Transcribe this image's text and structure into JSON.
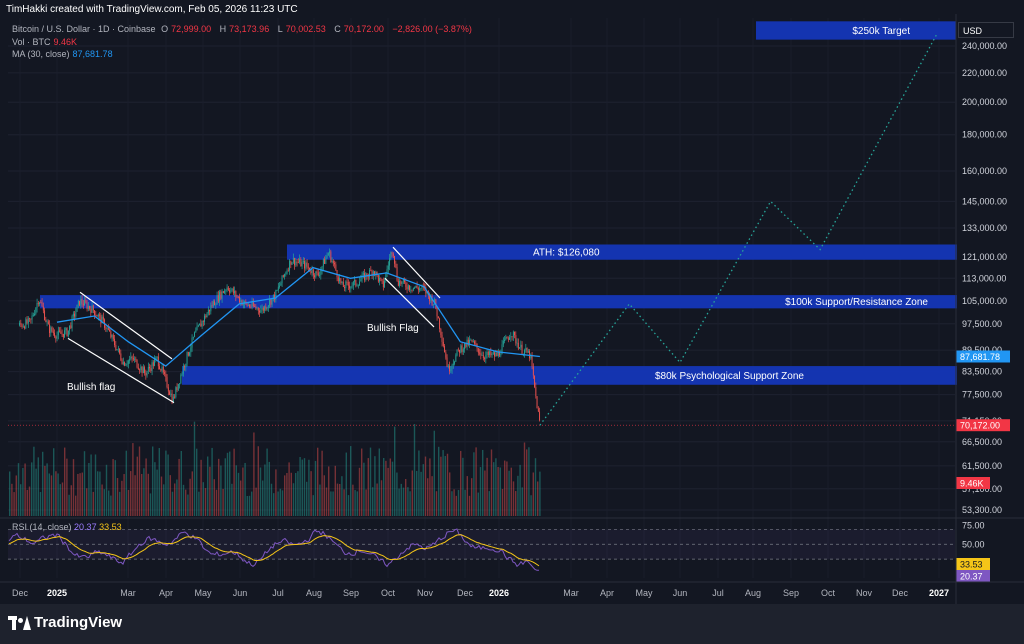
{
  "header": {
    "credit": "TimHakki created with TradingView.com, Feb 05, 2026 11:23 UTC",
    "symbol": "Bitcoin / U.S. Dollar · 1D · Coinbase",
    "open_label": "O",
    "open": "72,999.00",
    "high_label": "H",
    "high": "73,173.96",
    "low_label": "L",
    "low": "70,002.53",
    "close_label": "C",
    "close": "70,172.00",
    "change": "−2,826.00 (−3.87%)",
    "vol_label": "Vol · BTC",
    "vol": "9.46K",
    "ma_label": "MA (30, close)",
    "ma": "87,681.78",
    "rsi_label": "RSI (14, close)",
    "rsi": "20.37",
    "rsi_ma": "33.53"
  },
  "currency": "USD",
  "brand": "TradingView",
  "colors": {
    "background": "#131722",
    "zone": "#1436b8",
    "up": "#26a69a",
    "down": "#ef5350",
    "ma": "#2196f3",
    "projection": "#26a69a",
    "rsi": "#7e57c2",
    "rsi_ma": "#f5c518",
    "price_label": "#f23645"
  },
  "chart_data": {
    "type": "candlestick",
    "x_ticks": [
      "Dec",
      "2025",
      "Mar",
      "Apr",
      "May",
      "Jun",
      "Jul",
      "Aug",
      "Sep",
      "Oct",
      "Nov",
      "Dec",
      "2026",
      "Mar",
      "Apr",
      "May",
      "Jun",
      "Jul",
      "Aug",
      "Sep",
      "Oct",
      "Nov",
      "Dec",
      "2027"
    ],
    "y_ticks": [
      "240,000.00",
      "220,000.00",
      "200,000.00",
      "180,000.00",
      "160,000.00",
      "145,000.00",
      "133,000.00",
      "121,000.00",
      "113,000.00",
      "105,000.00",
      "97,500.00",
      "89,500.00",
      "83,500.00",
      "77,500.00",
      "71,150.00",
      "66,500.00",
      "61,500.00",
      "57,100.00",
      "53,300.00"
    ],
    "scale": "log",
    "price_series": [
      [
        "2024-12-01",
        97000
      ],
      [
        "2024-12-10",
        98000
      ],
      [
        "2024-12-17",
        106000
      ],
      [
        "2024-12-25",
        96000
      ],
      [
        "2025-01-01",
        94000
      ],
      [
        "2025-01-10",
        95000
      ],
      [
        "2025-01-20",
        105000
      ],
      [
        "2025-01-31",
        102000
      ],
      [
        "2025-02-10",
        97000
      ],
      [
        "2025-02-25",
        86000
      ],
      [
        "2025-03-05",
        87000
      ],
      [
        "2025-03-15",
        83000
      ],
      [
        "2025-03-25",
        87000
      ],
      [
        "2025-04-07",
        76000
      ],
      [
        "2025-04-15",
        84000
      ],
      [
        "2025-04-25",
        94000
      ],
      [
        "2025-05-10",
        104000
      ],
      [
        "2025-05-22",
        110000
      ],
      [
        "2025-06-05",
        104000
      ],
      [
        "2025-06-20",
        102000
      ],
      [
        "2025-07-01",
        107000
      ],
      [
        "2025-07-14",
        120000
      ],
      [
        "2025-07-25",
        118000
      ],
      [
        "2025-08-05",
        114000
      ],
      [
        "2025-08-14",
        123000
      ],
      [
        "2025-08-25",
        110000
      ],
      [
        "2025-09-05",
        111000
      ],
      [
        "2025-09-20",
        116000
      ],
      [
        "2025-09-28",
        110000
      ],
      [
        "2025-10-06",
        125000
      ],
      [
        "2025-10-10",
        112000
      ],
      [
        "2025-10-20",
        110000
      ],
      [
        "2025-11-01",
        109000
      ],
      [
        "2025-11-10",
        104000
      ],
      [
        "2025-11-21",
        84000
      ],
      [
        "2025-12-01",
        90000
      ],
      [
        "2025-12-10",
        92000
      ],
      [
        "2025-12-20",
        88000
      ],
      [
        "2026-01-01",
        88000
      ],
      [
        "2026-01-12",
        95000
      ],
      [
        "2026-01-20",
        90000
      ],
      [
        "2026-01-28",
        88000
      ],
      [
        "2026-02-01",
        78000
      ],
      [
        "2026-02-05",
        70172
      ]
    ],
    "ma_series": [
      [
        "2025-01-01",
        98000
      ],
      [
        "2025-02-01",
        100000
      ],
      [
        "2025-03-01",
        92000
      ],
      [
        "2025-04-01",
        85000
      ],
      [
        "2025-05-01",
        94000
      ],
      [
        "2025-06-01",
        104000
      ],
      [
        "2025-07-01",
        106000
      ],
      [
        "2025-08-01",
        117000
      ],
      [
        "2025-09-01",
        113000
      ],
      [
        "2025-10-01",
        115000
      ],
      [
        "2025-11-01",
        110000
      ],
      [
        "2025-12-01",
        92000
      ],
      [
        "2026-01-01",
        89000
      ],
      [
        "2026-02-05",
        87681.78
      ]
    ],
    "projection": [
      [
        "2026-02-05",
        70172
      ],
      [
        "2026-04-20",
        104000
      ],
      [
        "2026-06-01",
        86000
      ],
      [
        "2026-08-15",
        145000
      ],
      [
        "2026-09-25",
        124000
      ],
      [
        "2026-12-31",
        250000
      ]
    ],
    "zones": [
      {
        "label": "$250k Target",
        "low": 245000,
        "high": 260000
      },
      {
        "label": "ATH: $126,080",
        "low": 120000,
        "high": 126080
      },
      {
        "label": "$100k Support/Resistance Zone",
        "low": 102500,
        "high": 107000
      },
      {
        "label": "$80k Psychological Support Zone",
        "low": 80000,
        "high": 85000
      }
    ],
    "annotations": [
      "Bullish flag",
      "Bullish Flag"
    ],
    "volume": {
      "last": "9.46K"
    },
    "rsi": {
      "range": [
        0,
        100
      ],
      "levels": [
        70,
        50,
        30
      ],
      "ticks": [
        "75.00",
        "50.00"
      ],
      "value": 20.37,
      "ma": 33.53
    },
    "price_labels": {
      "ma": "87,681.78",
      "last": "70,172.00",
      "volume": "9.46K",
      "rsi_ma": "33.53",
      "rsi": "20.37"
    }
  }
}
